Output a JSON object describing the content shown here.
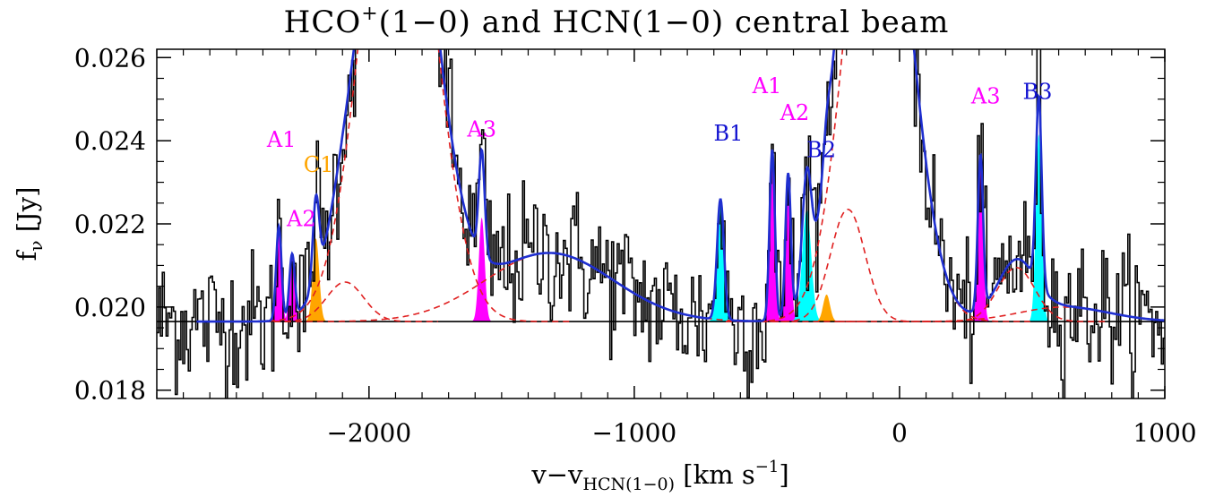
{
  "chart_data": {
    "type": "line",
    "title": {
      "main": "HCO",
      "sup": "+",
      "rest": "(1−0) and HCN(1−0) central beam"
    },
    "xlabel": {
      "main": "v−v",
      "sub": "HCN(1−0)",
      "rest": " [km s",
      "sup": "−1",
      "end": "]"
    },
    "ylabel": {
      "main": "f",
      "sub": "ν",
      "rest": " [Jy]"
    },
    "xlim": [
      -2800,
      1000
    ],
    "ylim": [
      0.0178,
      0.0262
    ],
    "xticks": [
      -2000,
      -1000,
      0,
      1000
    ],
    "xtick_labels": [
      "−2000",
      "−1000",
      "0",
      "1000"
    ],
    "yticks": [
      0.018,
      0.02,
      0.022,
      0.024,
      0.026
    ],
    "ytick_labels": [
      "0.018",
      "0.020",
      "0.022",
      "0.024",
      "0.026"
    ],
    "baseline": 0.01965,
    "colors": {
      "data": "#000000",
      "fit": "#1f2fd0",
      "broad_component": "#e02020",
      "magenta": "#ff00ff",
      "orange": "#ffa500",
      "cyan": "#00ffff",
      "blue_label": "#1010d0"
    },
    "broad_components": [
      {
        "center": -1890,
        "amp": 0.013,
        "sigma": 130
      },
      {
        "center": -80,
        "amp": 0.013,
        "sigma": 115
      },
      {
        "center": -2090,
        "amp": 0.00095,
        "sigma": 70
      },
      {
        "center": -195,
        "amp": 0.0027,
        "sigma": 65
      },
      {
        "center": -1320,
        "amp": 0.00165,
        "sigma": 240
      },
      {
        "center": 440,
        "amp": 0.0013,
        "sigma": 70
      },
      {
        "center": 620,
        "amp": 0.00035,
        "sigma": 170
      }
    ],
    "narrow_components": [
      {
        "label": "A1",
        "center": -2340,
        "amp": 0.00225,
        "sigma": 10,
        "fill": "magenta"
      },
      {
        "label": "A2",
        "center": -2290,
        "amp": 0.0015,
        "sigma": 10,
        "fill": "magenta"
      },
      {
        "label": "C1",
        "center": -2200,
        "amp": 0.002,
        "sigma": 12,
        "fill": "orange"
      },
      {
        "label": "A3",
        "center": -1575,
        "amp": 0.0025,
        "sigma": 11,
        "fill": "magenta"
      },
      {
        "label": "B1",
        "center": -675,
        "amp": 0.0029,
        "sigma": 13,
        "fill": "cyan"
      },
      {
        "label": "A1",
        "center": -480,
        "amp": 0.0041,
        "sigma": 10,
        "fill": "magenta"
      },
      {
        "label": "A2",
        "center": -420,
        "amp": 0.0034,
        "sigma": 10,
        "fill": "magenta"
      },
      {
        "label": "B2",
        "center": -350,
        "amp": 0.0027,
        "sigma": 17,
        "fill": "cyan"
      },
      {
        "label": "",
        "center": -275,
        "amp": 0.00065,
        "sigma": 13,
        "fill": "orange"
      },
      {
        "label": "A3",
        "center": 305,
        "amp": 0.0037,
        "sigma": 10,
        "fill": "magenta"
      },
      {
        "label": "B3",
        "center": 525,
        "amp": 0.0045,
        "sigma": 11,
        "fill": "cyan"
      }
    ],
    "annotations": [
      {
        "text": "A1",
        "x": -2330,
        "y": 0.02385,
        "color": "magenta"
      },
      {
        "text": "C1",
        "x": -2190,
        "y": 0.02325,
        "color": "orange"
      },
      {
        "text": "A2",
        "x": -2255,
        "y": 0.02195,
        "color": "magenta"
      },
      {
        "text": "A3",
        "x": -1575,
        "y": 0.0241,
        "color": "magenta"
      },
      {
        "text": "B1",
        "x": -645,
        "y": 0.024,
        "color": "blue_label"
      },
      {
        "text": "A1",
        "x": -500,
        "y": 0.02515,
        "color": "magenta"
      },
      {
        "text": "A2",
        "x": -395,
        "y": 0.0245,
        "color": "magenta"
      },
      {
        "text": "B2",
        "x": -295,
        "y": 0.0236,
        "color": "blue_label"
      },
      {
        "text": "A3",
        "x": 325,
        "y": 0.0249,
        "color": "magenta"
      },
      {
        "text": "B3",
        "x": 520,
        "y": 0.025,
        "color": "blue_label"
      }
    ]
  }
}
